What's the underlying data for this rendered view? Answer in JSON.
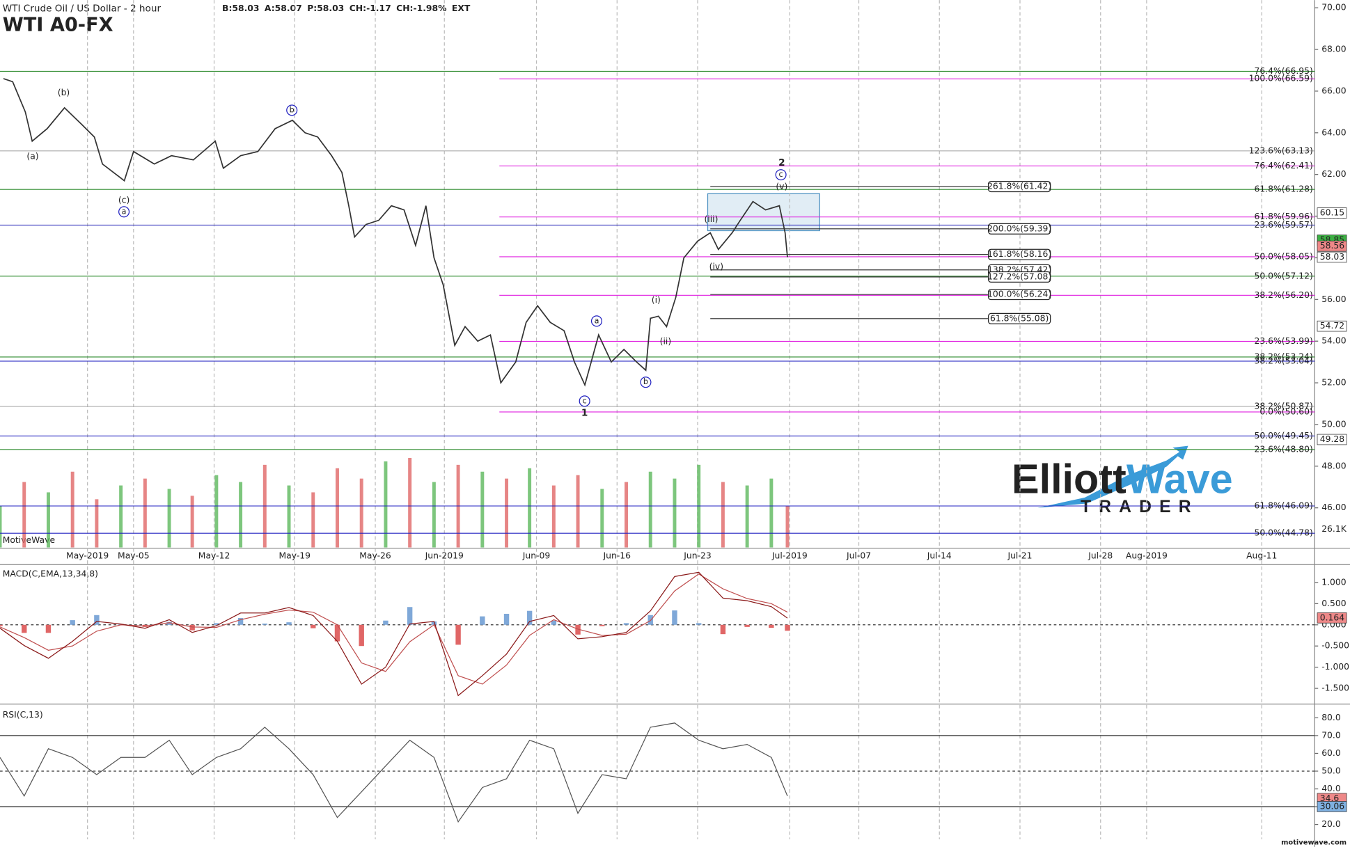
{
  "chart_data": [
    {
      "type": "line",
      "title": "WTI Crude Oil / US Dollar - 2 hour",
      "subtitle": "WTI A0-FX",
      "quote": [
        "B:58.03",
        "A:58.07",
        "P:58.03",
        "CH:-1.17",
        "CH:-1.98%",
        "EXT"
      ],
      "quote_colors": [
        "#444",
        "#444",
        "#444",
        "#c00000",
        "#c00000",
        "#aab"
      ],
      "watermark": "MotiveWave",
      "logo": [
        "Elliott",
        "Wave",
        "TRADER"
      ],
      "site": "motivewave.com",
      "color": "#333",
      "x": [
        113.7,
        114.5,
        115.6,
        116.2,
        117.5,
        119.0,
        120.5,
        121.6,
        122.3,
        124.2,
        125.0,
        126.8,
        128.3,
        130.2,
        132.1,
        132.8,
        134.3,
        135.8,
        137.3,
        138.8,
        139.9,
        141.0,
        142.2,
        143.1,
        143.7,
        144.2,
        145.2,
        146.3,
        147.4,
        148.5,
        149.5,
        150.4,
        151.1,
        151.9,
        152.9,
        153.8,
        154.9,
        156.0,
        156.9,
        158.2,
        159.1,
        160.1,
        161.2,
        162.4,
        163.3,
        164.2,
        165.4,
        166.5,
        167.6,
        168.7,
        169.5,
        169.9,
        170.6,
        171.3,
        172.1,
        172.8,
        174.0,
        175.1,
        175.8,
        177.0,
        177.7,
        178.8,
        179.9,
        181.1,
        181.6,
        181.8
      ],
      "values": [
        66.6,
        66.45,
        65.0,
        63.6,
        64.2,
        65.2,
        64.4,
        63.8,
        62.5,
        61.7,
        63.1,
        62.5,
        62.9,
        62.7,
        63.6,
        62.3,
        62.9,
        63.1,
        64.2,
        64.6,
        64.0,
        63.8,
        62.9,
        62.1,
        60.5,
        59.0,
        59.6,
        59.8,
        60.5,
        60.3,
        58.6,
        60.5,
        58.0,
        56.7,
        53.8,
        54.7,
        54.0,
        54.3,
        52.0,
        53.0,
        54.9,
        55.7,
        54.9,
        54.5,
        53.0,
        51.9,
        54.3,
        53.0,
        53.6,
        53.0,
        52.6,
        55.1,
        55.2,
        54.7,
        56.1,
        58.0,
        58.8,
        59.2,
        58.4,
        59.2,
        59.8,
        60.7,
        60.3,
        60.5,
        59.2,
        58.03
      ],
      "xlim": [
        113.4,
        227.6
      ],
      "xticks": [
        {
          "value": 121,
          "label": "May-2019"
        },
        {
          "value": 125,
          "label": "May-05"
        },
        {
          "value": 132,
          "label": "May-12"
        },
        {
          "value": 139,
          "label": "May-19"
        },
        {
          "value": 146,
          "label": "May-26"
        },
        {
          "value": 152,
          "label": "Jun-2019"
        },
        {
          "value": 160,
          "label": "Jun-09"
        },
        {
          "value": 167,
          "label": "Jun-16"
        },
        {
          "value": 174,
          "label": "Jun-23"
        },
        {
          "value": 182,
          "label": "Jul-2019"
        },
        {
          "value": 188,
          "label": "Jul-07"
        },
        {
          "value": 195,
          "label": "Jul-14"
        },
        {
          "value": 202,
          "label": "Jul-21"
        },
        {
          "value": 209,
          "label": "Jul-28"
        },
        {
          "value": 213,
          "label": "Aug-2019"
        },
        {
          "value": 223,
          "label": "Aug-11"
        }
      ],
      "ylim": [
        44.1,
        70.37
      ],
      "yticks": [
        {
          "value": 46,
          "label": "46.00"
        },
        {
          "value": 48,
          "label": "48.00"
        },
        {
          "value": 50,
          "label": "50.00"
        },
        {
          "value": 52,
          "label": "52.00"
        },
        {
          "value": 54,
          "label": "54.00"
        },
        {
          "value": 56,
          "label": "56.00"
        },
        {
          "value": 58,
          "label": "58.00"
        },
        {
          "value": 60,
          "label": "60.00"
        },
        {
          "value": 62,
          "label": "62.00"
        },
        {
          "value": 64,
          "label": "64.00"
        },
        {
          "value": 66,
          "label": "66.00"
        },
        {
          "value": 68,
          "label": "68.00"
        },
        {
          "value": 70,
          "label": "70.00"
        }
      ],
      "levels": [
        {
          "value": 66.95,
          "label": "76.4%(66.95)",
          "color": "#2e8b2e"
        },
        {
          "value": 66.59,
          "label": "100.0%(66.59)",
          "color": "#e020e0"
        },
        {
          "value": 63.13,
          "label": "123.6%(63.13)",
          "color": "#aaaaaa"
        },
        {
          "value": 62.41,
          "label": "76.4%(62.41)",
          "color": "#e020e0"
        },
        {
          "value": 61.28,
          "label": "61.8%(61.28)",
          "color": "#2e8b2e"
        },
        {
          "value": 59.96,
          "label": "61.8%(59.96)",
          "color": "#e020e0"
        },
        {
          "value": 59.57,
          "label": "23.6%(59.57)",
          "color": "#4040c0"
        },
        {
          "value": 58.05,
          "label": "50.0%(58.05)",
          "color": "#e020e0"
        },
        {
          "value": 57.12,
          "label": "50.0%(57.12)",
          "color": "#2e8b2e"
        },
        {
          "value": 56.2,
          "label": "38.2%(56.20)",
          "color": "#e020e0"
        },
        {
          "value": 53.99,
          "label": "23.6%(53.99)",
          "color": "#e020e0"
        },
        {
          "value": 53.24,
          "label": "38.2%(53.24)",
          "color": "#2e8b2e"
        },
        {
          "value": 53.04,
          "label": "38.2%(53.04)",
          "color": "#2020c0"
        },
        {
          "value": 50.87,
          "label": "38.2%(50.87)",
          "color": "#aaaaaa"
        },
        {
          "value": 50.6,
          "label": "0.0%(50.60)",
          "color": "#e020e0"
        },
        {
          "value": 49.45,
          "label": "50.0%(49.45)",
          "color": "#2020c0"
        },
        {
          "value": 48.8,
          "label": "23.6%(48.80)",
          "color": "#2e8b2e"
        },
        {
          "value": 46.09,
          "label": "61.8%(46.09)",
          "color": "#2020c0"
        },
        {
          "value": 44.78,
          "label": "50.0%(44.78)",
          "color": "#2020c0"
        }
      ],
      "projections": [
        {
          "value": 61.42,
          "label": "261.8%(61.42)"
        },
        {
          "value": 59.39,
          "label": "200.0%(59.39)"
        },
        {
          "value": 58.16,
          "label": "161.8%(58.16)"
        },
        {
          "value": 57.42,
          "label": "138.2%(57.42)"
        },
        {
          "value": 57.08,
          "label": "127.2%(57.08)"
        },
        {
          "value": 56.24,
          "label": "100.0%(56.24)"
        },
        {
          "value": 55.08,
          "label": "61.8%(55.08)"
        }
      ],
      "badges": [
        60.15,
        58.85,
        58.56,
        58.03,
        54.72,
        49.28
      ],
      "badge_colors": [
        "#ffffff",
        "#3cb043",
        "#ee8888",
        "#ffffff",
        "#ffffff",
        "#ffffff"
      ],
      "annotations": [
        {
          "text": "(a)",
          "circled": false
        },
        {
          "text": "(b)",
          "circled": false
        },
        {
          "text": "(c)",
          "circled": false
        },
        {
          "text": "a",
          "circled": true
        },
        {
          "text": "b",
          "circled": true
        },
        {
          "text": "a",
          "circled": true
        },
        {
          "text": "b",
          "circled": true
        },
        {
          "text": "c",
          "circled": true
        },
        {
          "text": "1",
          "circled": false
        },
        {
          "text": "(i)",
          "circled": false
        },
        {
          "text": "(ii)",
          "circled": false
        },
        {
          "text": "(iii)",
          "circled": false
        },
        {
          "text": "(iv)",
          "circled": false
        },
        {
          "text": "(v)",
          "circled": false
        },
        {
          "text": "c",
          "circled": true
        },
        {
          "text": "2",
          "circled": false
        }
      ]
    },
    {
      "type": "bar",
      "last_label": "26.1K",
      "x": [
        113.4,
        115.5,
        117.6,
        119.7,
        121.8,
        123.9,
        126.0,
        128.1,
        130.1,
        132.2,
        134.3,
        136.4,
        138.5,
        140.6,
        142.7,
        144.8,
        146.9,
        149.0,
        151.1,
        153.2,
        155.3,
        157.4,
        159.4,
        161.5,
        163.6,
        165.7,
        167.8,
        169.9,
        172.0,
        174.1,
        176.2,
        178.3,
        180.4,
        181.8
      ],
      "values": [
        60,
        95,
        80,
        110,
        70,
        90,
        100,
        85,
        75,
        105,
        95,
        120,
        90,
        80,
        115,
        100,
        125,
        130,
        95,
        120,
        110,
        100,
        115,
        90,
        105,
        85,
        95,
        110,
        100,
        120,
        95,
        90,
        100,
        60
      ],
      "colors": [
        "#5cb85c",
        "#e06666",
        "#5cb85c",
        "#e06666",
        "#e06666",
        "#5cb85c",
        "#e06666",
        "#5cb85c",
        "#e06666",
        "#5cb85c",
        "#5cb85c",
        "#e06666",
        "#5cb85c",
        "#e06666",
        "#e06666",
        "#e06666",
        "#5cb85c",
        "#e06666",
        "#5cb85c",
        "#e06666",
        "#5cb85c",
        "#e06666",
        "#5cb85c",
        "#e06666",
        "#e06666",
        "#5cb85c",
        "#e06666",
        "#5cb85c",
        "#5cb85c",
        "#5cb85c",
        "#e06666",
        "#5cb85c",
        "#5cb85c",
        "#e06666"
      ],
      "ylim": [
        0,
        145
      ]
    },
    {
      "type": "line",
      "title": "MACD(C,EMA,13,34,8)",
      "x": [
        113.4,
        115.5,
        117.6,
        119.7,
        121.8,
        123.9,
        126.0,
        128.1,
        130.1,
        132.2,
        134.3,
        136.4,
        138.5,
        140.6,
        142.7,
        144.8,
        146.9,
        149.0,
        151.1,
        153.2,
        155.3,
        157.4,
        159.4,
        161.5,
        163.6,
        165.7,
        167.8,
        169.9,
        172.0,
        174.1,
        176.2,
        178.3,
        180.4,
        181.8
      ],
      "values": [
        -0.08,
        -0.49,
        -0.79,
        -0.39,
        0.08,
        0.02,
        -0.08,
        0.12,
        -0.18,
        -0.02,
        0.28,
        0.28,
        0.41,
        0.22,
        -0.39,
        -1.4,
        -1.0,
        0.02,
        0.08,
        -1.67,
        -1.2,
        -0.69,
        0.08,
        0.22,
        -0.33,
        -0.28,
        -0.18,
        0.33,
        1.14,
        1.24,
        0.63,
        0.57,
        0.43,
        0.16
      ],
      "signal": [
        -0.05,
        -0.3,
        -0.6,
        -0.5,
        -0.15,
        0.0,
        -0.03,
        0.05,
        -0.05,
        -0.06,
        0.12,
        0.25,
        0.35,
        0.3,
        0.0,
        -0.9,
        -1.1,
        -0.4,
        0.0,
        -1.2,
        -1.4,
        -0.95,
        -0.25,
        0.12,
        -0.1,
        -0.25,
        -0.22,
        0.1,
        0.8,
        1.2,
        0.85,
        0.62,
        0.5,
        0.3
      ],
      "histogram": [
        -0.03,
        -0.19,
        -0.19,
        0.11,
        0.23,
        0.02,
        -0.05,
        0.07,
        -0.13,
        0.04,
        0.16,
        0.03,
        0.06,
        -0.08,
        -0.39,
        -0.5,
        0.1,
        0.42,
        0.08,
        -0.47,
        0.2,
        0.26,
        0.33,
        0.1,
        -0.23,
        -0.03,
        0.04,
        0.23,
        0.34,
        0.04,
        -0.22,
        -0.05,
        -0.07,
        -0.14
      ],
      "color": "#8b1a1a",
      "signal_color": "#c05050",
      "up_color": "#7fa8d8",
      "down_color": "#e06666",
      "ylim": [
        -1.81,
        1.34
      ],
      "yticks": [
        {
          "value": 1,
          "label": "1.000"
        },
        {
          "value": 0.5,
          "label": "0.500"
        },
        {
          "value": 0,
          "label": "0.000"
        },
        {
          "value": -0.5,
          "label": "-0.500"
        },
        {
          "value": -1,
          "label": "-1.000"
        },
        {
          "value": -1.5,
          "label": "-1.500"
        }
      ],
      "badges": [
        0.164
      ],
      "badge_colors": [
        "#ee8888"
      ]
    },
    {
      "type": "line",
      "title": "RSI(C,13)",
      "x": [
        113.4,
        115.5,
        117.6,
        119.7,
        121.8,
        123.9,
        126.0,
        128.1,
        130.1,
        132.2,
        134.3,
        136.4,
        138.5,
        140.6,
        142.7,
        144.8,
        146.9,
        149.0,
        151.1,
        153.2,
        155.3,
        157.4,
        159.4,
        161.5,
        163.6,
        165.7,
        167.8,
        169.9,
        172.0,
        174.1,
        176.2,
        178.3,
        180.4,
        181.8
      ],
      "values": [
        57.7,
        36.0,
        62.6,
        57.7,
        48.0,
        57.7,
        57.7,
        67.4,
        48.0,
        57.7,
        62.6,
        74.7,
        62.6,
        48.0,
        23.9,
        38.4,
        52.9,
        67.4,
        57.7,
        21.5,
        40.8,
        45.7,
        67.4,
        62.6,
        26.3,
        48.0,
        45.7,
        74.7,
        77.1,
        67.4,
        62.6,
        65.0,
        57.7,
        36.0
      ],
      "color": "#555",
      "ylim": [
        11.7,
        85.8
      ],
      "yticks": [
        {
          "value": 20,
          "label": "20.0"
        },
        {
          "value": 30,
          "label": "30.0"
        },
        {
          "value": 40,
          "label": "40.0"
        },
        {
          "value": 50,
          "label": "50.0"
        },
        {
          "value": 60,
          "label": "60.0"
        },
        {
          "value": 70,
          "label": "70.0"
        },
        {
          "value": 80,
          "label": "80.0"
        }
      ],
      "bands": [
        70,
        50,
        30
      ],
      "badges": [
        34.6,
        30.06
      ],
      "badge_colors": [
        "#ee8888",
        "#7fb0e0"
      ]
    }
  ]
}
